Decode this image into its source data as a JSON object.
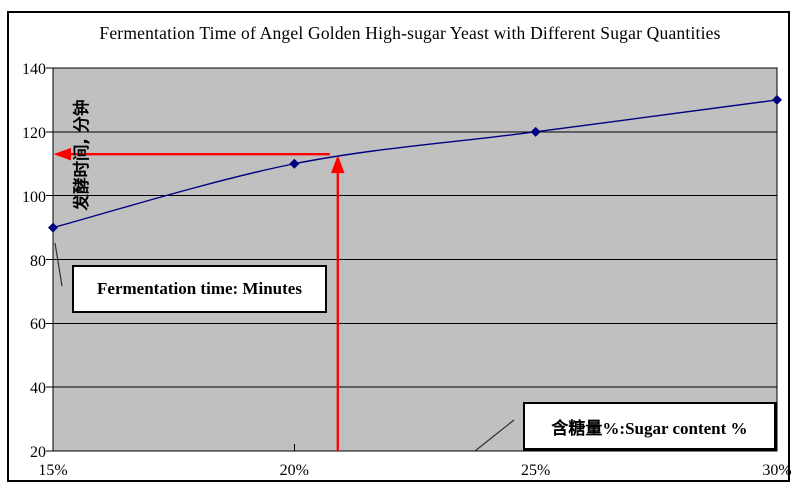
{
  "figure": {
    "background_color": "#FFFFFF",
    "border_color": "#000000"
  },
  "chart_data": {
    "type": "line",
    "title": "Fermentation Time of Angel Golden High-sugar Yeast with Different Sugar Quantities",
    "y_axis_label": "发酵时间, 分钟",
    "x_tick_labels": [
      "15%",
      "20%",
      "25%",
      "30%"
    ],
    "x_values": [
      15,
      20,
      25,
      30
    ],
    "series": [
      {
        "values": [
          90,
          110,
          120,
          130
        ],
        "color": "#000080",
        "marker": "diamond",
        "smooth": true
      }
    ],
    "xlim": [
      15,
      30
    ],
    "ylim": [
      20,
      140
    ],
    "y_ticks": [
      20,
      40,
      60,
      80,
      100,
      120,
      140
    ],
    "plot_background": "#C0C0C0",
    "gridlines": "horizontal",
    "legend": "none",
    "annotation": {
      "x": 20.9,
      "y": 113,
      "color": "#FF0000",
      "style": "crosshair-arrows: up-arrow from x-axis to curve, left-arrow from curve to y-axis"
    }
  },
  "textboxes": {
    "fermentation": {
      "text": "Fermentation time: Minutes"
    },
    "sugar": {
      "text": "含糖量%:Sugar content %"
    }
  }
}
